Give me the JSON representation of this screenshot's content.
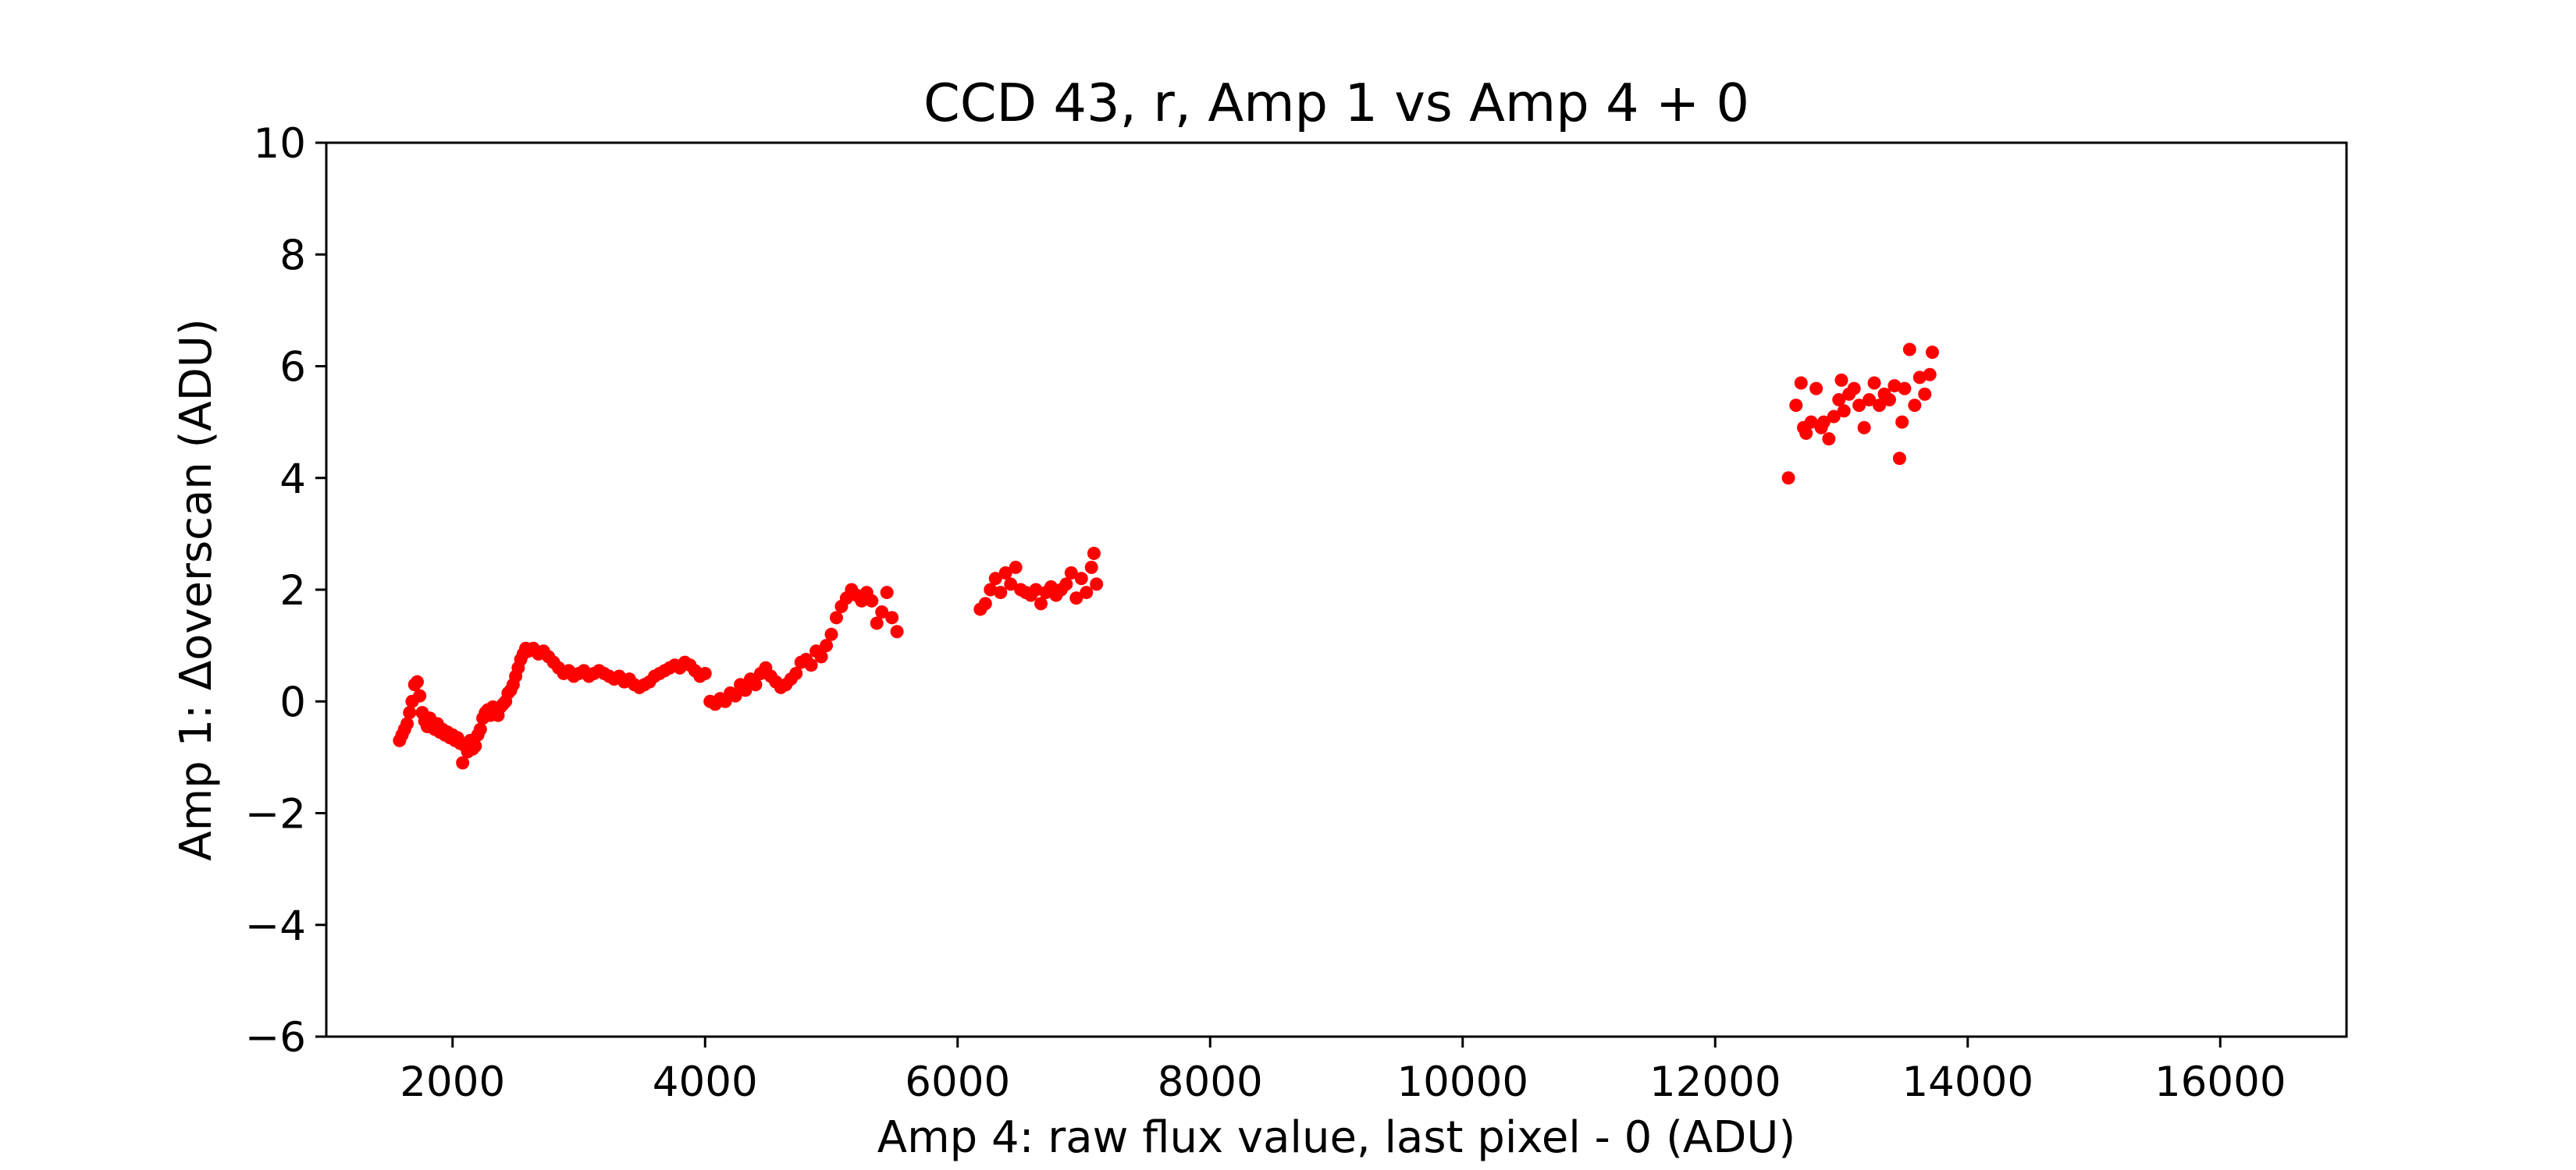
{
  "chart_data": {
    "type": "scatter",
    "title": "CCD 43, r, Amp 1 vs Amp 4 + 0",
    "xlabel": "Amp 4: raw flux value, last pixel - 0 (ADU)",
    "ylabel": "Amp 1: Δoverscan (ADU)",
    "xlim": [
      1000,
      17000
    ],
    "ylim": [
      -6,
      10
    ],
    "xticks": [
      2000,
      4000,
      6000,
      8000,
      10000,
      12000,
      14000,
      16000
    ],
    "yticks": [
      -6,
      -4,
      -2,
      0,
      2,
      4,
      6,
      8,
      10
    ],
    "xtick_labels": [
      "2000",
      "4000",
      "6000",
      "8000",
      "10000",
      "12000",
      "14000",
      "16000"
    ],
    "ytick_labels": [
      "−6",
      "−4",
      "−2",
      "0",
      "2",
      "4",
      "6",
      "8",
      "10"
    ],
    "grid": false,
    "marker_color": "#ff0000",
    "series": [
      {
        "points": [
          [
            1580,
            -0.7
          ],
          [
            1600,
            -0.6
          ],
          [
            1620,
            -0.5
          ],
          [
            1640,
            -0.4
          ],
          [
            1660,
            -0.2
          ],
          [
            1680,
            0.0
          ],
          [
            1700,
            0.3
          ],
          [
            1720,
            0.35
          ],
          [
            1740,
            0.1
          ],
          [
            1760,
            -0.2
          ],
          [
            1780,
            -0.35
          ],
          [
            1800,
            -0.45
          ],
          [
            1820,
            -0.3
          ],
          [
            1840,
            -0.4
          ],
          [
            1860,
            -0.5
          ],
          [
            1880,
            -0.4
          ],
          [
            1900,
            -0.55
          ],
          [
            1920,
            -0.5
          ],
          [
            1940,
            -0.6
          ],
          [
            1960,
            -0.55
          ],
          [
            1980,
            -0.65
          ],
          [
            2000,
            -0.6
          ],
          [
            2020,
            -0.7
          ],
          [
            2040,
            -0.65
          ],
          [
            2060,
            -0.75
          ],
          [
            2080,
            -1.1
          ],
          [
            2100,
            -0.8
          ],
          [
            2120,
            -0.9
          ],
          [
            2140,
            -0.7
          ],
          [
            2160,
            -0.85
          ],
          [
            2180,
            -0.8
          ],
          [
            2200,
            -0.6
          ],
          [
            2220,
            -0.5
          ],
          [
            2240,
            -0.3
          ],
          [
            2260,
            -0.2
          ],
          [
            2280,
            -0.15
          ],
          [
            2300,
            -0.25
          ],
          [
            2320,
            -0.1
          ],
          [
            2340,
            -0.2
          ],
          [
            2360,
            -0.25
          ],
          [
            2380,
            -0.1
          ],
          [
            2400,
            -0.05
          ],
          [
            2420,
            0.0
          ],
          [
            2440,
            0.15
          ],
          [
            2460,
            0.2
          ],
          [
            2480,
            0.3
          ],
          [
            2500,
            0.45
          ],
          [
            2520,
            0.6
          ],
          [
            2540,
            0.75
          ],
          [
            2560,
            0.85
          ],
          [
            2580,
            0.95
          ],
          [
            2600,
            0.9
          ],
          [
            2640,
            0.95
          ],
          [
            2680,
            0.85
          ],
          [
            2720,
            0.9
          ],
          [
            2760,
            0.8
          ],
          [
            2800,
            0.7
          ],
          [
            2840,
            0.6
          ],
          [
            2880,
            0.5
          ],
          [
            2920,
            0.55
          ],
          [
            2960,
            0.45
          ],
          [
            3000,
            0.5
          ],
          [
            3040,
            0.55
          ],
          [
            3080,
            0.45
          ],
          [
            3120,
            0.5
          ],
          [
            3160,
            0.55
          ],
          [
            3200,
            0.5
          ],
          [
            3240,
            0.45
          ],
          [
            3280,
            0.4
          ],
          [
            3320,
            0.45
          ],
          [
            3360,
            0.35
          ],
          [
            3400,
            0.4
          ],
          [
            3440,
            0.3
          ],
          [
            3480,
            0.25
          ],
          [
            3520,
            0.3
          ],
          [
            3560,
            0.35
          ],
          [
            3600,
            0.45
          ],
          [
            3640,
            0.5
          ],
          [
            3680,
            0.55
          ],
          [
            3720,
            0.6
          ],
          [
            3760,
            0.65
          ],
          [
            3800,
            0.6
          ],
          [
            3840,
            0.7
          ],
          [
            3880,
            0.65
          ],
          [
            3920,
            0.55
          ],
          [
            3960,
            0.45
          ],
          [
            4000,
            0.5
          ],
          [
            4040,
            0.0
          ],
          [
            4080,
            -0.05
          ],
          [
            4120,
            0.05
          ],
          [
            4160,
            0.0
          ],
          [
            4200,
            0.15
          ],
          [
            4240,
            0.1
          ],
          [
            4280,
            0.3
          ],
          [
            4320,
            0.2
          ],
          [
            4360,
            0.4
          ],
          [
            4400,
            0.3
          ],
          [
            4440,
            0.5
          ],
          [
            4480,
            0.6
          ],
          [
            4520,
            0.45
          ],
          [
            4560,
            0.35
          ],
          [
            4600,
            0.25
          ],
          [
            4640,
            0.3
          ],
          [
            4680,
            0.4
          ],
          [
            4720,
            0.5
          ],
          [
            4760,
            0.7
          ],
          [
            4800,
            0.75
          ],
          [
            4840,
            0.65
          ],
          [
            4880,
            0.9
          ],
          [
            4920,
            0.8
          ],
          [
            4960,
            1.0
          ],
          [
            5000,
            1.2
          ],
          [
            5040,
            1.5
          ],
          [
            5080,
            1.7
          ],
          [
            5120,
            1.85
          ],
          [
            5160,
            2.0
          ],
          [
            5200,
            1.9
          ],
          [
            5240,
            1.8
          ],
          [
            5280,
            1.95
          ],
          [
            5320,
            1.8
          ],
          [
            5360,
            1.4
          ],
          [
            5400,
            1.6
          ],
          [
            5440,
            1.95
          ],
          [
            5480,
            1.5
          ],
          [
            5520,
            1.25
          ],
          [
            6180,
            1.65
          ],
          [
            6220,
            1.75
          ],
          [
            6260,
            2.0
          ],
          [
            6300,
            2.2
          ],
          [
            6340,
            1.95
          ],
          [
            6380,
            2.3
          ],
          [
            6420,
            2.1
          ],
          [
            6460,
            2.4
          ],
          [
            6500,
            2.0
          ],
          [
            6540,
            1.95
          ],
          [
            6580,
            1.9
          ],
          [
            6620,
            2.0
          ],
          [
            6660,
            1.75
          ],
          [
            6700,
            1.95
          ],
          [
            6740,
            2.05
          ],
          [
            6780,
            1.9
          ],
          [
            6820,
            2.0
          ],
          [
            6860,
            2.1
          ],
          [
            6900,
            2.3
          ],
          [
            6940,
            1.85
          ],
          [
            6980,
            2.2
          ],
          [
            7020,
            1.95
          ],
          [
            7060,
            2.4
          ],
          [
            7080,
            2.65
          ],
          [
            7100,
            2.1
          ],
          [
            12580,
            4.0
          ],
          [
            12640,
            5.3
          ],
          [
            12680,
            5.7
          ],
          [
            12700,
            4.9
          ],
          [
            12720,
            4.8
          ],
          [
            12760,
            5.0
          ],
          [
            12800,
            5.6
          ],
          [
            12840,
            4.9
          ],
          [
            12860,
            5.0
          ],
          [
            12900,
            4.7
          ],
          [
            12940,
            5.1
          ],
          [
            12980,
            5.4
          ],
          [
            13000,
            5.75
          ],
          [
            13020,
            5.2
          ],
          [
            13060,
            5.5
          ],
          [
            13100,
            5.6
          ],
          [
            13140,
            5.3
          ],
          [
            13180,
            4.9
          ],
          [
            13220,
            5.4
          ],
          [
            13260,
            5.7
          ],
          [
            13300,
            5.3
          ],
          [
            13340,
            5.5
          ],
          [
            13380,
            5.4
          ],
          [
            13420,
            5.65
          ],
          [
            13460,
            4.35
          ],
          [
            13480,
            5.0
          ],
          [
            13500,
            5.6
          ],
          [
            13540,
            6.3
          ],
          [
            13580,
            5.3
          ],
          [
            13620,
            5.8
          ],
          [
            13660,
            5.5
          ],
          [
            13700,
            5.85
          ],
          [
            13720,
            6.25
          ]
        ]
      }
    ]
  }
}
